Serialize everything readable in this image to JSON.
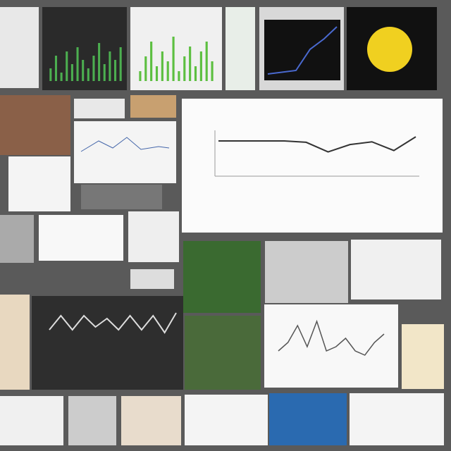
{
  "chart_data": [
    {
      "type": "line",
      "color": "#333333",
      "values": [
        7.7,
        7.7,
        7.7,
        7.7,
        7.4,
        5.3,
        6.9,
        7.5,
        5.6,
        8.6
      ],
      "ylim": [
        0,
        10
      ]
    },
    {
      "type": "line",
      "color": "#dddddd",
      "values": [
        3,
        8,
        3,
        8,
        4,
        7,
        3,
        8,
        3,
        8,
        2,
        9
      ],
      "ylim": [
        0,
        10
      ]
    },
    {
      "type": "line",
      "color": "#555555",
      "values": [
        2,
        4,
        8,
        3,
        9,
        2,
        3,
        5,
        2,
        1,
        4,
        6
      ],
      "ylim": [
        0,
        10
      ]
    },
    {
      "type": "bar",
      "color": "#4caf50",
      "values": [
        3,
        6,
        2,
        7,
        4,
        8,
        5,
        3,
        6,
        9,
        4,
        7,
        5,
        8
      ],
      "ylim": [
        0,
        10
      ]
    },
    {
      "type": "bar",
      "color": "#5cbf40",
      "values": [
        2,
        5,
        8,
        3,
        6,
        4,
        9,
        2,
        5,
        7,
        3,
        6,
        8,
        4
      ],
      "ylim": [
        0,
        10
      ]
    }
  ]
}
